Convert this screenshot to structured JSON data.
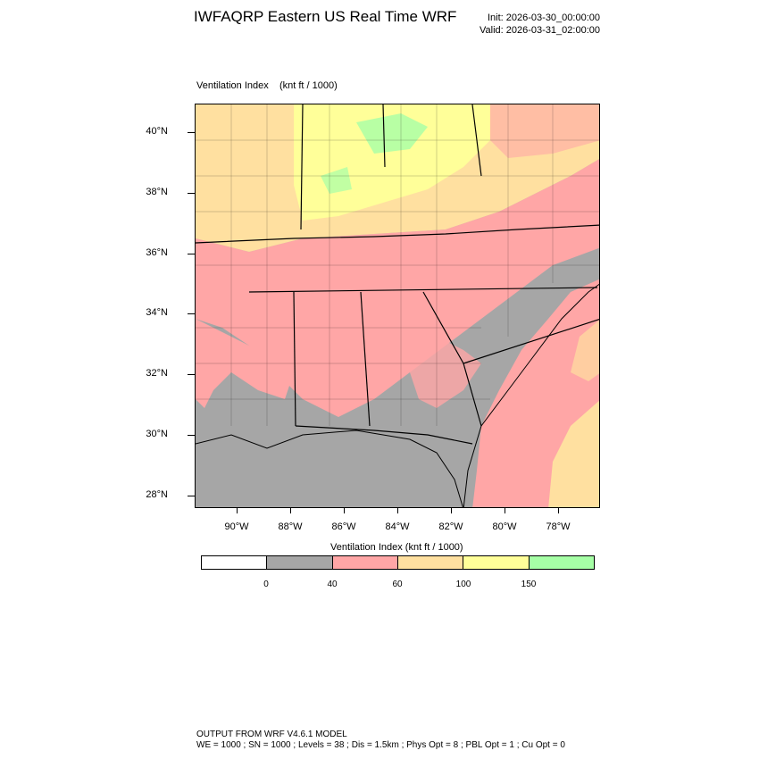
{
  "header": {
    "title": "IWFAQRP Eastern US Real Time WRF",
    "init": "Init: 2026-03-30_00:00:00",
    "valid": "Valid: 2026-03-31_02:00:00"
  },
  "field": {
    "name": "Ventilation Index",
    "units": "(knt ft / 1000)"
  },
  "axes": {
    "lat_labels": [
      "40°N",
      "38°N",
      "36°N",
      "34°N",
      "32°N",
      "30°N",
      "28°N"
    ],
    "lon_labels": [
      "90°W",
      "88°W",
      "86°W",
      "84°W",
      "82°W",
      "80°W",
      "78°W"
    ]
  },
  "colorbar": {
    "title": "Ventilation Index  (knt ft / 1000)",
    "labels": [
      "0",
      "40",
      "60",
      "100",
      "150"
    ],
    "colors": [
      "#ffffff",
      "#a6a6a6",
      "#ffa6a6",
      "#ffe0a0",
      "#ffff99",
      "#a6ffa6"
    ]
  },
  "footer": {
    "line1": "OUTPUT FROM WRF V4.6.1 MODEL",
    "line2": "WE = 1000 ; SN = 1000 ; Levels = 38 ; Dis = 1.5km ; Phys Opt = 8 ; PBL Opt = 1 ; Cu Opt = 0"
  }
}
